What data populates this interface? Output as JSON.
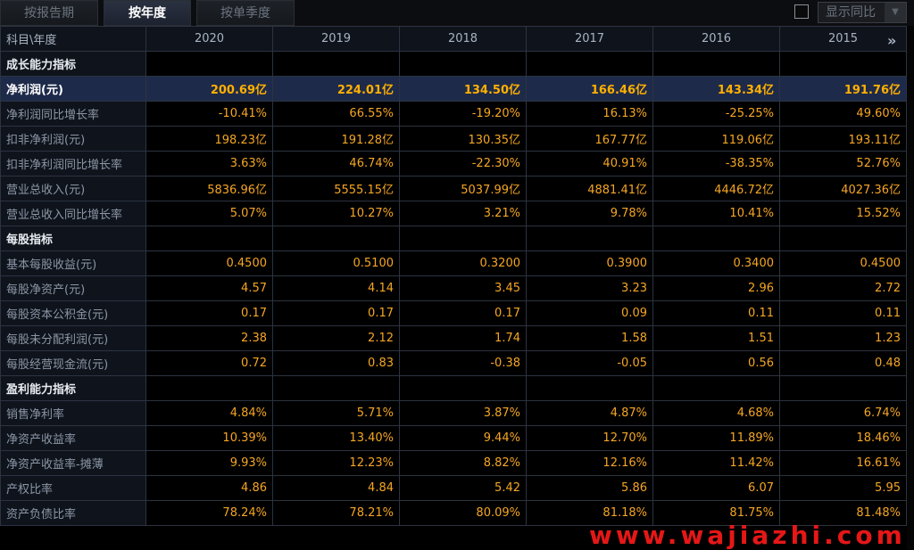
{
  "tabs": [
    {
      "label": "按报告期",
      "active": false
    },
    {
      "label": "按年度",
      "active": true
    },
    {
      "label": "按单季度",
      "active": false
    }
  ],
  "toggle": {
    "label": "显示同比",
    "checked": false
  },
  "table": {
    "corner_label": "科目\\年度",
    "years": [
      "2020",
      "2019",
      "2018",
      "2017",
      "2016",
      "2015"
    ],
    "rows": [
      {
        "type": "section",
        "label": "成长能力指标",
        "values": [
          "",
          "",
          "",
          "",
          "",
          ""
        ]
      },
      {
        "type": "highlight",
        "label": "净利润(元)",
        "values": [
          "200.69亿",
          "224.01亿",
          "134.50亿",
          "166.46亿",
          "143.34亿",
          "191.76亿"
        ]
      },
      {
        "type": "data",
        "label": "净利润同比增长率",
        "values": [
          "-10.41%",
          "66.55%",
          "-19.20%",
          "16.13%",
          "-25.25%",
          "49.60%"
        ]
      },
      {
        "type": "data",
        "label": "扣非净利润(元)",
        "values": [
          "198.23亿",
          "191.28亿",
          "130.35亿",
          "167.77亿",
          "119.06亿",
          "193.11亿"
        ]
      },
      {
        "type": "data",
        "label": "扣非净利润同比增长率",
        "values": [
          "3.63%",
          "46.74%",
          "-22.30%",
          "40.91%",
          "-38.35%",
          "52.76%"
        ]
      },
      {
        "type": "data",
        "label": "营业总收入(元)",
        "values": [
          "5836.96亿",
          "5555.15亿",
          "5037.99亿",
          "4881.41亿",
          "4446.72亿",
          "4027.36亿"
        ]
      },
      {
        "type": "data",
        "label": "营业总收入同比增长率",
        "values": [
          "5.07%",
          "10.27%",
          "3.21%",
          "9.78%",
          "10.41%",
          "15.52%"
        ]
      },
      {
        "type": "section",
        "label": "每股指标",
        "values": [
          "",
          "",
          "",
          "",
          "",
          ""
        ]
      },
      {
        "type": "data",
        "label": "基本每股收益(元)",
        "values": [
          "0.4500",
          "0.5100",
          "0.3200",
          "0.3900",
          "0.3400",
          "0.4500"
        ]
      },
      {
        "type": "data",
        "label": "每股净资产(元)",
        "values": [
          "4.57",
          "4.14",
          "3.45",
          "3.23",
          "2.96",
          "2.72"
        ]
      },
      {
        "type": "data",
        "label": "每股资本公积金(元)",
        "values": [
          "0.17",
          "0.17",
          "0.17",
          "0.09",
          "0.11",
          "0.11"
        ]
      },
      {
        "type": "data",
        "label": "每股未分配利润(元)",
        "values": [
          "2.38",
          "2.12",
          "1.74",
          "1.58",
          "1.51",
          "1.23"
        ]
      },
      {
        "type": "data",
        "label": "每股经营现金流(元)",
        "values": [
          "0.72",
          "0.83",
          "-0.38",
          "-0.05",
          "0.56",
          "0.48"
        ]
      },
      {
        "type": "section",
        "label": "盈利能力指标",
        "values": [
          "",
          "",
          "",
          "",
          "",
          ""
        ]
      },
      {
        "type": "data",
        "label": "销售净利率",
        "values": [
          "4.84%",
          "5.71%",
          "3.87%",
          "4.87%",
          "4.68%",
          "6.74%"
        ]
      },
      {
        "type": "data",
        "label": "净资产收益率",
        "values": [
          "10.39%",
          "13.40%",
          "9.44%",
          "12.70%",
          "11.89%",
          "18.46%"
        ]
      },
      {
        "type": "data",
        "label": "净资产收益率-摊薄",
        "values": [
          "9.93%",
          "12.23%",
          "8.82%",
          "12.16%",
          "11.42%",
          "16.61%"
        ]
      },
      {
        "type": "data",
        "label": "产权比率",
        "values": [
          "4.86",
          "4.84",
          "5.42",
          "5.86",
          "6.07",
          "5.95"
        ]
      },
      {
        "type": "data",
        "label": "资产负债比率",
        "values": [
          "78.24%",
          "78.21%",
          "80.09%",
          "81.18%",
          "81.75%",
          "81.48%"
        ]
      }
    ]
  },
  "icons": {
    "more": "double-chevron-right-icon",
    "toggle_arrow": "chevron-down-icon"
  },
  "watermark": "www.wajiazhi.com",
  "colors": {
    "value": "#f5a623",
    "highlight_row": "#1e2a4a",
    "label": "#8c96a6",
    "watermark": "#ff1a1a"
  }
}
